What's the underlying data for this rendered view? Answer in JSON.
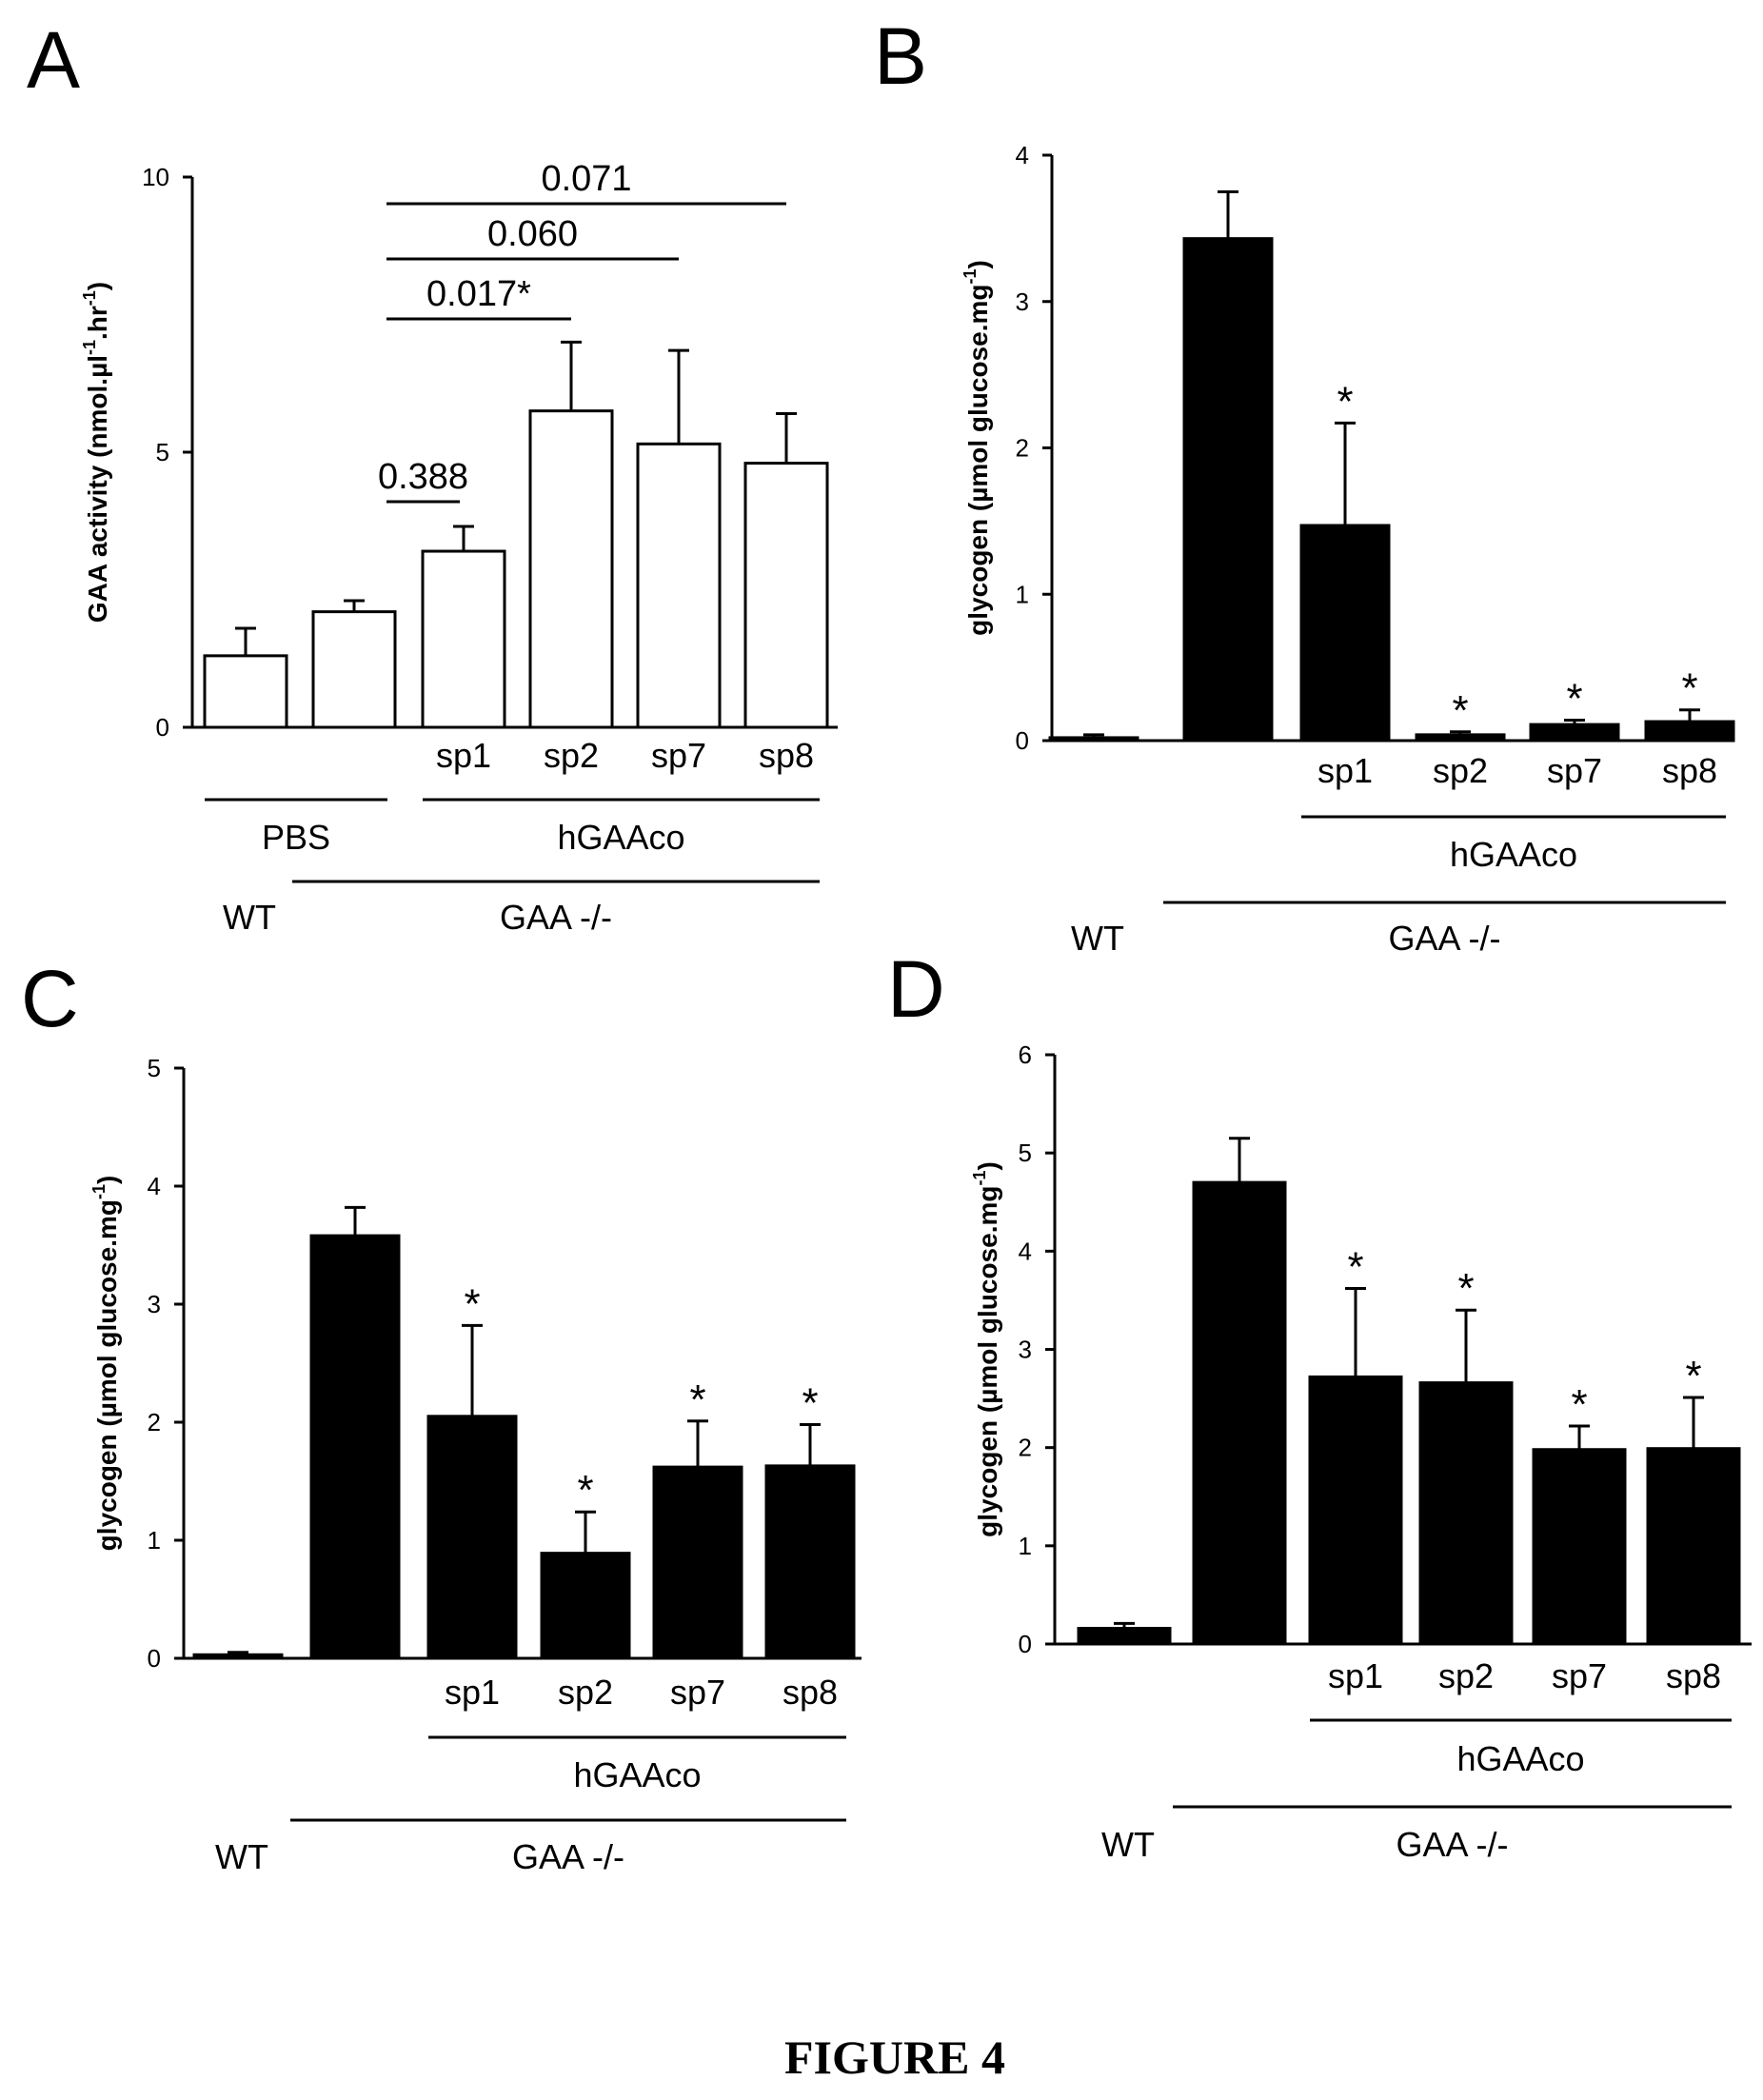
{
  "figure": {
    "caption": "FIGURE 4"
  },
  "chart_data": [
    {
      "panel": "A",
      "type": "bar",
      "ylabel": "GAA activity (nmol.µl",
      "ylabel_parts": {
        "a": "GAA activity (nmol.µl",
        "sup1": "-1",
        "b": ".hr",
        "sup2": "-1",
        "c": ")"
      },
      "ylim": [
        0,
        10
      ],
      "yticks": [
        0,
        5,
        10
      ],
      "categories": [
        "",
        "",
        "sp1",
        "sp2",
        "sp7",
        "sp8"
      ],
      "values": [
        1.3,
        2.1,
        3.2,
        5.75,
        5.15,
        4.8
      ],
      "errors": [
        0.5,
        0.2,
        0.45,
        1.25,
        1.7,
        0.9
      ],
      "fill": "#ffffff",
      "significance": [
        "",
        "",
        "",
        "",
        "",
        ""
      ],
      "comparisons": [
        {
          "from": 1,
          "to": 2,
          "label": "0.388"
        },
        {
          "from": 1,
          "to": 3,
          "label": "0.017*"
        },
        {
          "from": 1,
          "to": 4,
          "label": "0.060"
        },
        {
          "from": 1,
          "to": 5,
          "label": "0.071"
        }
      ],
      "groups": [
        {
          "label": "PBS",
          "from": 0,
          "to": 1,
          "row": 1
        },
        {
          "label": "hGAAco",
          "from": 2,
          "to": 5,
          "row": 1
        },
        {
          "label": "GAA -/-",
          "from": 1,
          "to": 5,
          "row": 2
        }
      ],
      "standalone_labels": [
        {
          "label": "WT",
          "at": 0,
          "row": 2
        }
      ]
    },
    {
      "panel": "B",
      "type": "bar",
      "ylabel": "glycogen (µmol glucose.mg",
      "ylabel_parts": {
        "a": "glycogen (µmol glucose.mg",
        "sup1": "-1",
        "b": ")"
      },
      "ylim": [
        0,
        4
      ],
      "yticks": [
        0,
        1,
        2,
        3,
        4
      ],
      "categories": [
        "",
        "",
        "sp1",
        "sp2",
        "sp7",
        "sp8"
      ],
      "values": [
        0.02,
        3.43,
        1.47,
        0.04,
        0.11,
        0.13
      ],
      "errors": [
        0.02,
        0.32,
        0.7,
        0.02,
        0.03,
        0.08
      ],
      "fill": "#000000",
      "significance": [
        "",
        "",
        "*",
        "*",
        "*",
        "*"
      ],
      "comparisons": [],
      "groups": [
        {
          "label": "hGAAco",
          "from": 2,
          "to": 5,
          "row": 1
        },
        {
          "label": "GAA -/-",
          "from": 1,
          "to": 5,
          "row": 2
        }
      ],
      "standalone_labels": [
        {
          "label": "WT",
          "at": 0,
          "row": 2
        }
      ]
    },
    {
      "panel": "C",
      "type": "bar",
      "ylabel": "glycogen (µmol glucose.mg",
      "ylabel_parts": {
        "a": "glycogen (µmol glucose.mg",
        "sup1": "-1",
        "b": ")"
      },
      "ylim": [
        0,
        5
      ],
      "yticks": [
        0,
        1,
        2,
        3,
        4,
        5
      ],
      "categories": [
        "",
        "",
        "sp1",
        "sp2",
        "sp7",
        "sp8"
      ],
      "values": [
        0.03,
        3.58,
        2.05,
        0.89,
        1.62,
        1.63
      ],
      "errors": [
        0.02,
        0.24,
        0.77,
        0.35,
        0.39,
        0.35
      ],
      "fill": "#000000",
      "significance": [
        "",
        "",
        "*",
        "*",
        "*",
        "*"
      ],
      "comparisons": [],
      "groups": [
        {
          "label": "hGAAco",
          "from": 2,
          "to": 5,
          "row": 1
        },
        {
          "label": "GAA -/-",
          "from": 1,
          "to": 5,
          "row": 2
        }
      ],
      "standalone_labels": [
        {
          "label": "WT",
          "at": 0,
          "row": 2
        }
      ]
    },
    {
      "panel": "D",
      "type": "bar",
      "ylabel": "glycogen (µmol glucose.mg",
      "ylabel_parts": {
        "a": "glycogen (µmol glucose.mg",
        "sup1": "-1",
        "b": ")"
      },
      "ylim": [
        0,
        6
      ],
      "yticks": [
        0,
        1,
        2,
        3,
        4,
        5,
        6
      ],
      "categories": [
        "",
        "",
        "sp1",
        "sp2",
        "sp7",
        "sp8"
      ],
      "values": [
        0.16,
        4.7,
        2.72,
        2.66,
        1.98,
        1.99
      ],
      "errors": [
        0.05,
        0.45,
        0.9,
        0.74,
        0.24,
        0.52
      ],
      "fill": "#000000",
      "significance": [
        "",
        "",
        "*",
        "*",
        "*",
        "*"
      ],
      "comparisons": [],
      "groups": [
        {
          "label": "hGAAco",
          "from": 2,
          "to": 5,
          "row": 1
        },
        {
          "label": "GAA -/-",
          "from": 1,
          "to": 5,
          "row": 2
        }
      ],
      "standalone_labels": [
        {
          "label": "WT",
          "at": 0,
          "row": 2
        }
      ]
    }
  ]
}
